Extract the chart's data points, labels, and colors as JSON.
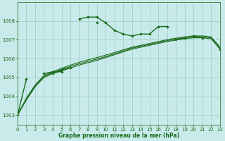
{
  "xlabel": "Graphe pression niveau de la mer (hPa)",
  "background_color": "#c8eaea",
  "grid_color": "#a0c8c8",
  "line_color": "#1a6b1a",
  "ylim": [
    1002.5,
    1009.0
  ],
  "xlim": [
    0,
    23
  ],
  "yticks": [
    1003,
    1004,
    1005,
    1006,
    1007,
    1008
  ],
  "xticks": [
    0,
    1,
    2,
    3,
    4,
    5,
    6,
    7,
    8,
    9,
    10,
    11,
    12,
    13,
    14,
    15,
    16,
    17,
    18,
    19,
    20,
    21,
    22,
    23
  ],
  "series1_x": [
    0,
    1,
    3,
    4,
    5,
    7,
    8,
    9,
    10,
    11,
    12,
    13,
    14,
    15,
    16,
    17,
    20,
    21,
    23
  ],
  "series1_y": [
    1003.0,
    1004.9,
    1005.2,
    1005.3,
    1005.3,
    1008.1,
    1008.2,
    1008.2,
    1007.9,
    1007.5,
    1007.3,
    1007.2,
    1007.3,
    1007.3,
    1007.7,
    1007.7,
    1007.2,
    1007.1,
    1006.5
  ],
  "series1_breaks": [
    [
      0,
      1
    ],
    [
      3,
      5
    ],
    [
      7,
      17
    ],
    [
      20,
      21
    ],
    [
      23,
      23
    ]
  ],
  "series2_segments": [
    {
      "x": [
        4,
        5,
        6
      ],
      "y": [
        1005.2,
        1005.4,
        1005.5
      ]
    },
    {
      "x": [
        9
      ],
      "y": [
        1007.9
      ]
    },
    {
      "x": [
        18,
        19
      ],
      "y": [
        1007.0,
        1007.1
      ]
    }
  ],
  "smooth1": {
    "x": [
      0,
      1,
      2,
      3,
      4,
      5,
      6,
      7,
      8,
      9,
      10,
      11,
      12,
      13,
      14,
      15,
      16,
      17,
      18,
      19,
      20,
      21,
      22,
      23
    ],
    "y": [
      1003.0,
      1003.8,
      1004.5,
      1005.0,
      1005.2,
      1005.35,
      1005.5,
      1005.65,
      1005.78,
      1005.9,
      1006.05,
      1006.2,
      1006.35,
      1006.5,
      1006.6,
      1006.7,
      1006.8,
      1006.9,
      1006.98,
      1007.05,
      1007.1,
      1007.1,
      1007.05,
      1006.5
    ]
  },
  "smooth2": {
    "x": [
      0,
      1,
      2,
      3,
      4,
      5,
      6,
      7,
      8,
      9,
      10,
      11,
      12,
      13,
      14,
      15,
      16,
      17,
      18,
      19,
      20,
      21,
      22,
      23
    ],
    "y": [
      1003.0,
      1003.85,
      1004.55,
      1005.05,
      1005.25,
      1005.42,
      1005.58,
      1005.72,
      1005.85,
      1005.97,
      1006.1,
      1006.25,
      1006.4,
      1006.55,
      1006.65,
      1006.75,
      1006.85,
      1006.95,
      1007.03,
      1007.1,
      1007.15,
      1007.15,
      1007.1,
      1006.55
    ]
  },
  "smooth3": {
    "x": [
      0,
      1,
      2,
      3,
      4,
      5,
      6,
      7,
      8,
      9,
      10,
      11,
      12,
      13,
      14,
      15,
      16,
      17,
      18,
      19,
      20,
      21,
      22,
      23
    ],
    "y": [
      1003.0,
      1003.9,
      1004.6,
      1005.1,
      1005.3,
      1005.48,
      1005.65,
      1005.8,
      1005.93,
      1006.05,
      1006.18,
      1006.32,
      1006.46,
      1006.6,
      1006.7,
      1006.8,
      1006.9,
      1007.0,
      1007.08,
      1007.15,
      1007.2,
      1007.2,
      1007.15,
      1006.62
    ]
  }
}
